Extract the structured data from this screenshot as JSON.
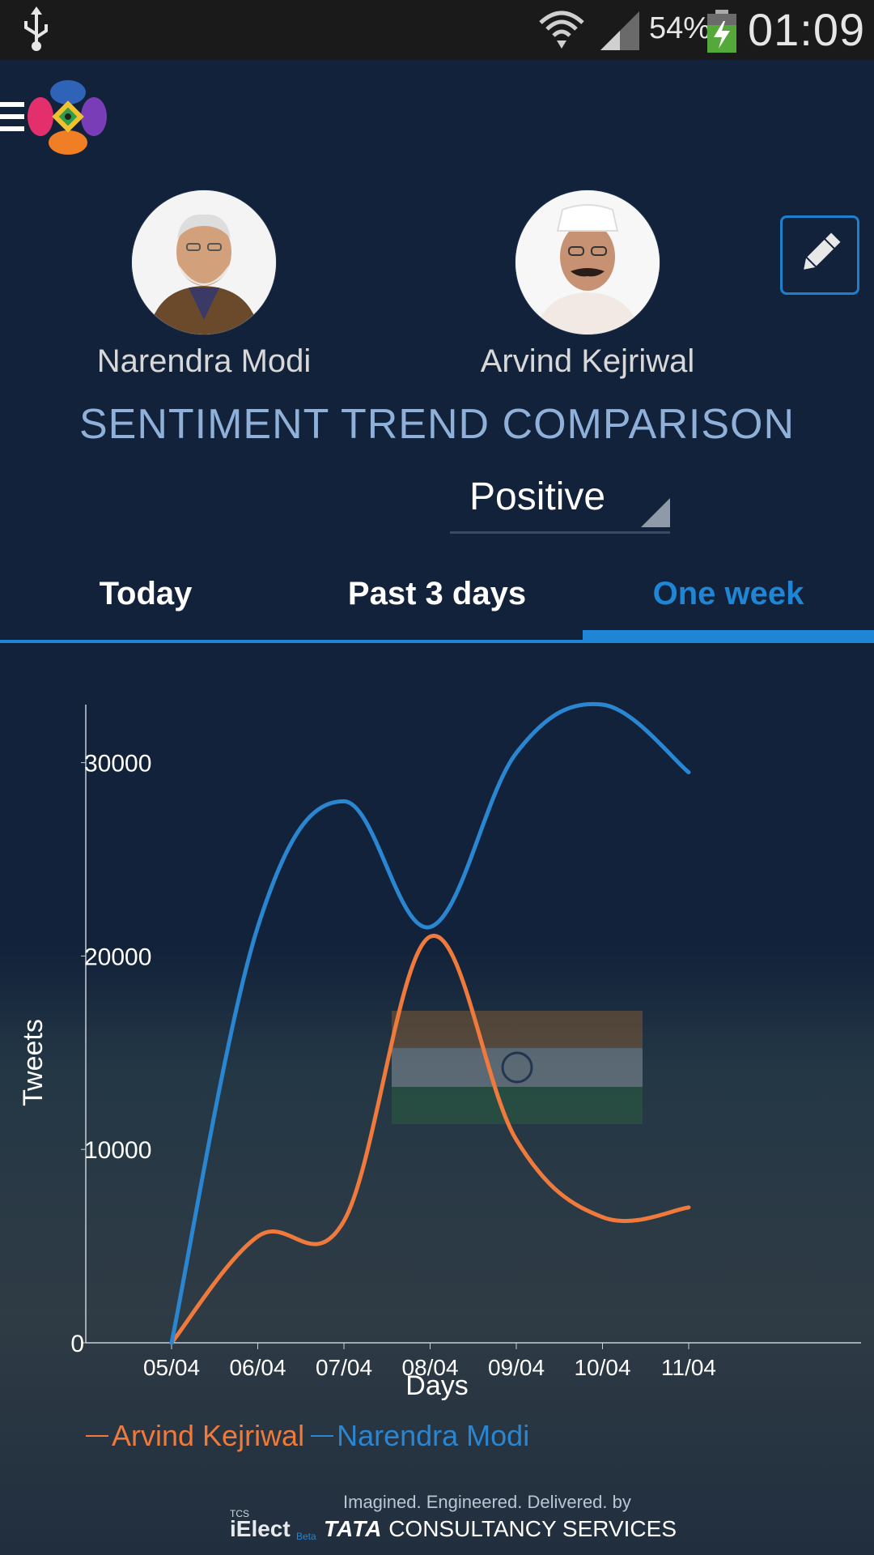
{
  "status_bar": {
    "battery_percent": "54%",
    "time": "01:09",
    "icons": [
      "usb-icon",
      "wifi-icon",
      "signal-icon",
      "battery-charging-icon"
    ]
  },
  "app_bar": {
    "icons": [
      "menu-icon",
      "app-logo"
    ]
  },
  "candidates": [
    {
      "name": "Narendra Modi"
    },
    {
      "name": "Arvind Kejriwal"
    }
  ],
  "edit_button": {
    "icon": "pencil-icon"
  },
  "section_title": "SENTIMENT TREND COMPARISON",
  "sentiment_dropdown": {
    "selected": "Positive"
  },
  "tabs": [
    {
      "label": "Today",
      "active": false
    },
    {
      "label": "Past 3 days",
      "active": false
    },
    {
      "label": "One week",
      "active": true
    }
  ],
  "colors": {
    "background": "#12223a",
    "accent": "#1f86d6",
    "modi_series": "#2a86d1",
    "kejriwal_series": "#ef7a3b"
  },
  "chart_data": {
    "type": "line",
    "x": [
      "05/04",
      "06/04",
      "07/04",
      "08/04",
      "09/04",
      "10/04",
      "11/04"
    ],
    "series": [
      {
        "name": "Narendra Modi",
        "values": [
          0,
          21500,
          28000,
          21500,
          30500,
          33000,
          29500
        ]
      },
      {
        "name": "Arvind Kejriwal",
        "values": [
          0,
          5500,
          6300,
          21000,
          10500,
          6500,
          7000
        ]
      }
    ],
    "y_ticks": [
      0,
      10000,
      20000,
      30000
    ],
    "ylim": [
      0,
      33000
    ],
    "xlabel": "Days",
    "ylabel": "Tweets",
    "legend": [
      "Arvind Kejriwal",
      "Narendra Modi"
    ],
    "legend_position": "bottom-left",
    "grid": false
  },
  "footer": {
    "tagline": "Imagined. Engineered. Delivered. by",
    "tcs_small": "TCS",
    "app_name": "iElect",
    "beta": "Beta",
    "company_bold": "TATA",
    "company_rest": "CONSULTANCY SERVICES"
  }
}
